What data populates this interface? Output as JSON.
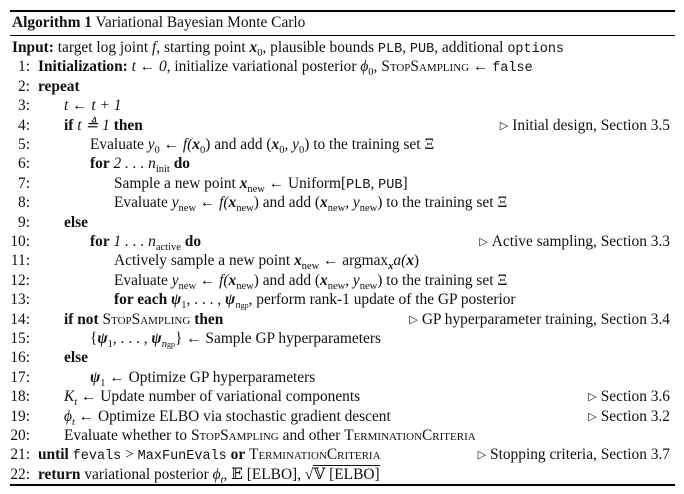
{
  "algorithm": {
    "label": "Algorithm 1",
    "name": "Variational Bayesian Monte Carlo"
  },
  "input_line": {
    "keyword": "Input:",
    "text_1": "target log joint",
    "f": "f",
    "text_2": ", starting point",
    "x0": "x",
    "x0_sub": "0",
    "text_3": ", plausible bounds",
    "plb": "PLB",
    "comma": ",",
    "pub": "PUB",
    "text_4": ", additional",
    "options": "options"
  },
  "lines": [
    {
      "num": "1:",
      "indent": 0
    },
    {
      "num": "2:",
      "indent": 0
    },
    {
      "num": "3:",
      "indent": 1
    },
    {
      "num": "4:",
      "indent": 1
    },
    {
      "num": "5:",
      "indent": 2
    },
    {
      "num": "6:",
      "indent": 2
    },
    {
      "num": "7:",
      "indent": 3
    },
    {
      "num": "8:",
      "indent": 3
    },
    {
      "num": "9:",
      "indent": 1
    },
    {
      "num": "10:",
      "indent": 2
    },
    {
      "num": "11:",
      "indent": 3
    },
    {
      "num": "12:",
      "indent": 3
    },
    {
      "num": "13:",
      "indent": 3
    },
    {
      "num": "14:",
      "indent": 1
    },
    {
      "num": "15:",
      "indent": 2
    },
    {
      "num": "16:",
      "indent": 1
    },
    {
      "num": "17:",
      "indent": 2
    },
    {
      "num": "18:",
      "indent": 1
    },
    {
      "num": "19:",
      "indent": 1
    },
    {
      "num": "20:",
      "indent": 1
    },
    {
      "num": "21:",
      "indent": 0
    },
    {
      "num": "22:",
      "indent": 0
    }
  ],
  "text": {
    "l1_kw": "Initialization:",
    "l1_t": "t ← 0",
    "l1_mid": ", initialize variational posterior",
    "l1_phi": "ϕ",
    "l1_phi_sub": "0",
    "l1_comma": ",",
    "l1_stop": "StopSampling",
    "l1_arrow": "←",
    "l1_false": "false",
    "l2_kw": "repeat",
    "l3": "t ← t + 1",
    "l4_if": "if",
    "l4_cond": "t ≜ 1",
    "l4_then": "then",
    "l4_comment": "Initial design, Section 3.5",
    "l5_a": "Evaluate",
    "l5_y": "y",
    "l5_y_sub": "0",
    "l5_b": "← f(",
    "l5_x": "x",
    "l5_x_sub": "0",
    "l5_c": ") and add (",
    "l5_x2": "x",
    "l5_x2_sub": "0",
    "l5_d": ", ",
    "l5_y2": "y",
    "l5_y2_sub": "0",
    "l5_e": ") to the training set Ξ",
    "l6_for": "for",
    "l6_range": "2 . . . n",
    "l6_sub": "init",
    "l6_do": "do",
    "l7_a": "Sample a new point",
    "l7_x": "x",
    "l7_x_sub": "new",
    "l7_b": "← Uniform[",
    "l7_plb": "PLB",
    "l7_c": ", ",
    "l7_pub": "PUB",
    "l7_d": "]",
    "l8_a": "Evaluate",
    "l8_y": "y",
    "l8_y_sub": "new",
    "l8_b": "← f(",
    "l8_x": "x",
    "l8_x_sub": "new",
    "l8_c": ") and add (",
    "l8_x2": "x",
    "l8_x2_sub": "new",
    "l8_d": ", ",
    "l8_y2": "y",
    "l8_y2_sub": "new",
    "l8_e": ") to the training set Ξ",
    "l9_kw": "else",
    "l10_for": "for",
    "l10_range": "1 . . . n",
    "l10_sub": "active",
    "l10_do": "do",
    "l10_comment": "Active sampling, Section 3.3",
    "l11_a": "Actively sample a new point",
    "l11_x": "x",
    "l11_x_sub": "new",
    "l11_b": "← argmax",
    "l11_b_sub": "x",
    "l11_c": "a(",
    "l11_x2": "x",
    "l11_d": ")",
    "l12_a": "Evaluate",
    "l12_y": "y",
    "l12_y_sub": "new",
    "l12_b": "← f(",
    "l12_x": "x",
    "l12_x_sub": "new",
    "l12_c": ") and add (",
    "l12_x2": "x",
    "l12_x2_sub": "new",
    "l12_d": ", ",
    "l12_y2": "y",
    "l12_y2_sub": "new",
    "l12_e": ") to the training set Ξ",
    "l13_kw": "for each",
    "l13_psi1": "ψ",
    "l13_psi1_sub": "1",
    "l13_mid": ", . . . ,",
    "l13_psin": "ψ",
    "l13_psin_sub": "n",
    "l13_psin_subsub": "gp",
    "l13_rest": ", perform rank-1 update of the GP posterior",
    "l14_if": "if not",
    "l14_stop": "StopSampling",
    "l14_then": "then",
    "l14_comment": "GP hyperparameter training, Section 3.4",
    "l15_open": "{",
    "l15_psi1": "ψ",
    "l15_psi1_sub": "1",
    "l15_mid": ", . . . ,",
    "l15_psin": "ψ",
    "l15_psin_sub": "n",
    "l15_psin_subsub": "gp",
    "l15_close": "} ← Sample GP hyperparameters",
    "l16_kw": "else",
    "l17_psi": "ψ",
    "l17_psi_sub": "1",
    "l17_rest": "← Optimize GP hyperparameters",
    "l18_k": "K",
    "l18_k_sub": "t",
    "l18_rest": "← Update number of variational components",
    "l18_comment": "Section 3.6",
    "l19_phi": "ϕ",
    "l19_phi_sub": "t",
    "l19_rest": "← Optimize ELBO via stochastic gradient descent",
    "l19_comment": "Section 3.2",
    "l20_a": "Evaluate whether to",
    "l20_stop": "StopSampling",
    "l20_b": "and other",
    "l20_term": "TerminationCriteria",
    "l21_until": "until",
    "l21_fevals": "fevals",
    "l21_gt": ">",
    "l21_max": "MaxFunEvals",
    "l21_or": "or",
    "l21_term": "TerminationCriteria",
    "l21_comment": "Stopping criteria, Section 3.7",
    "l22_kw": "return",
    "l22_a": "variational posterior",
    "l22_phi": "ϕ",
    "l22_phi_sub": "t",
    "l22_b": ",",
    "l22_e": "𝔼 [ELBO]",
    "l22_c": ",",
    "l22_sqrt": "√",
    "l22_v": "𝕍 [ELBO]"
  },
  "comment_marker": "▷"
}
